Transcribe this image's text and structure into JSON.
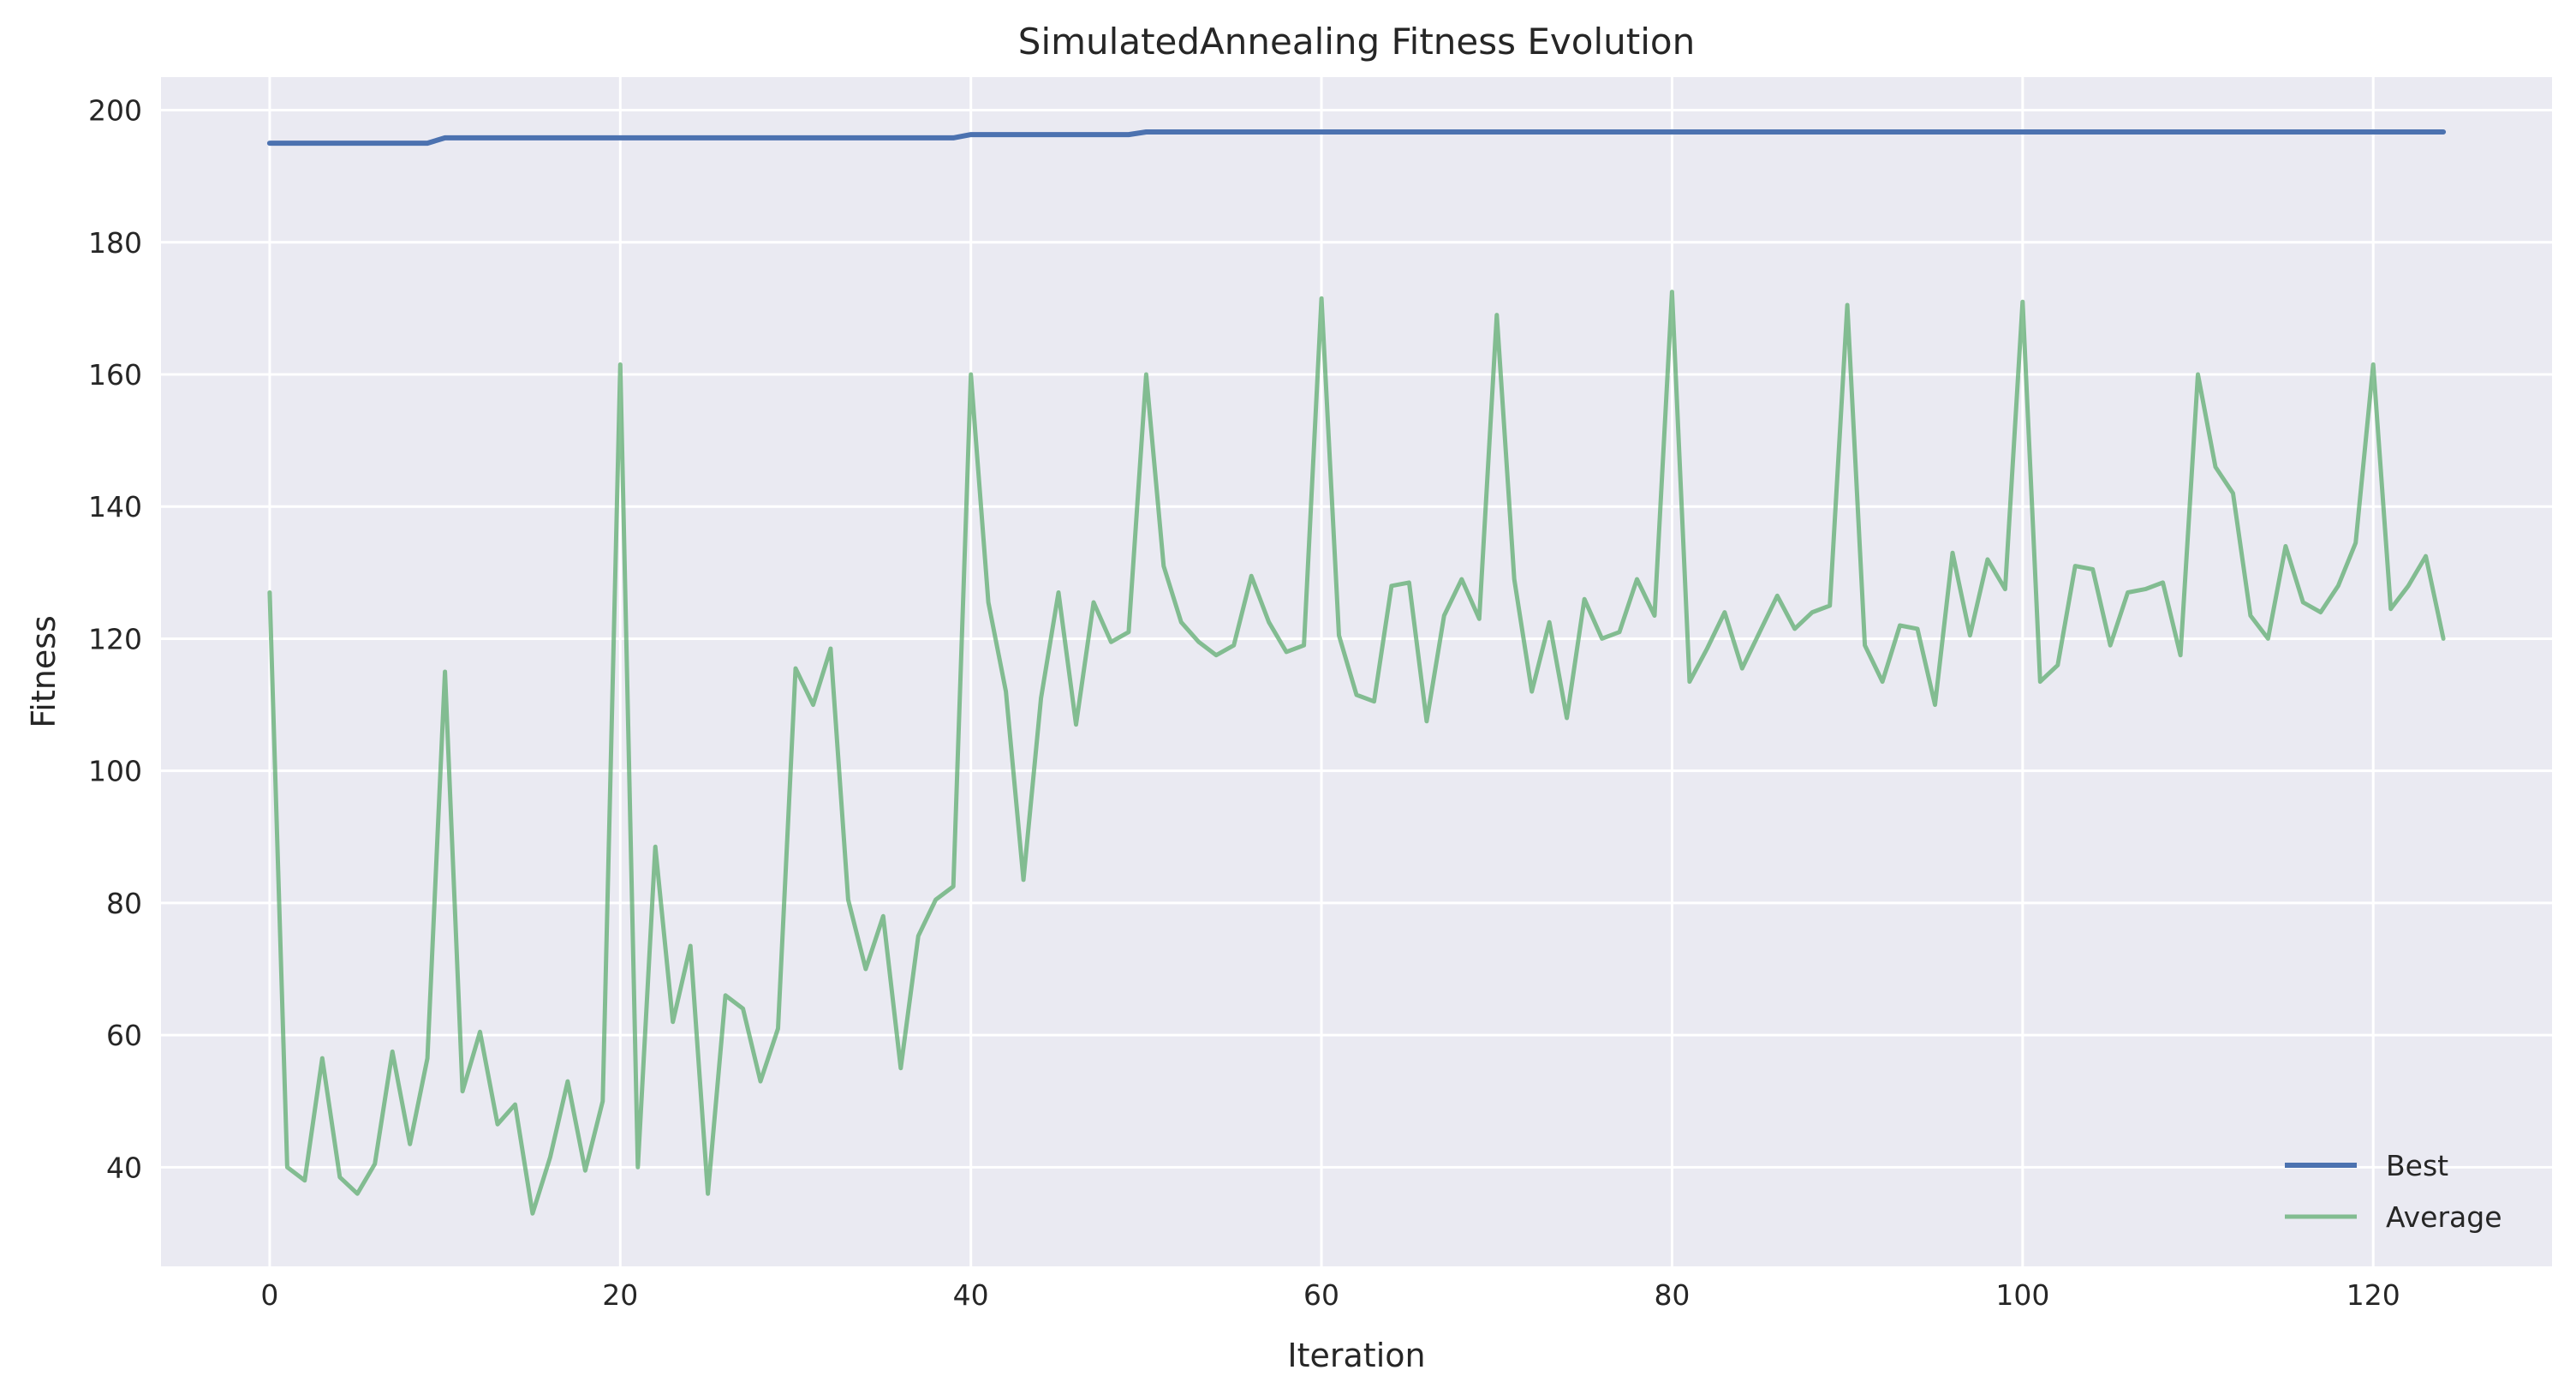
{
  "chart_data": {
    "type": "line",
    "title": "SimulatedAnnealing Fitness Evolution",
    "xlabel": "Iteration",
    "ylabel": "Fitness",
    "xlim": [
      -6.2,
      130.2
    ],
    "ylim": [
      25,
      205
    ],
    "xticks": [
      0,
      20,
      40,
      60,
      80,
      100,
      120
    ],
    "yticks": [
      40,
      60,
      80,
      100,
      120,
      140,
      160,
      180,
      200
    ],
    "grid": true,
    "legend_position": "bottom-right",
    "background_color": "#eaeaf2",
    "series": [
      {
        "name": "Best",
        "color": "#4c72b0",
        "x": [
          0,
          9,
          10,
          39,
          40,
          49,
          50,
          124
        ],
        "y": [
          195.0,
          195.0,
          195.8,
          195.8,
          196.3,
          196.3,
          196.7,
          196.7
        ]
      },
      {
        "name": "Average",
        "color": "#55a868",
        "x": [
          0,
          1,
          2,
          3,
          4,
          5,
          6,
          7,
          8,
          9,
          10,
          11,
          12,
          13,
          14,
          15,
          16,
          17,
          18,
          19,
          20,
          21,
          22,
          23,
          24,
          25,
          26,
          27,
          28,
          29,
          30,
          31,
          32,
          33,
          34,
          35,
          36,
          37,
          38,
          39,
          40,
          41,
          42,
          43,
          44,
          45,
          46,
          47,
          48,
          49,
          50,
          51,
          52,
          53,
          54,
          55,
          56,
          57,
          58,
          59,
          60,
          61,
          62,
          63,
          64,
          65,
          66,
          67,
          68,
          69,
          70,
          71,
          72,
          73,
          74,
          75,
          76,
          77,
          78,
          79,
          80,
          81,
          82,
          83,
          84,
          85,
          86,
          87,
          88,
          89,
          90,
          91,
          92,
          93,
          94,
          95,
          96,
          97,
          98,
          99,
          100,
          101,
          102,
          103,
          104,
          105,
          106,
          107,
          108,
          109,
          110,
          111,
          112,
          113,
          114,
          115,
          116,
          117,
          118,
          119,
          120,
          121,
          122,
          123,
          124
        ],
        "y": [
          127,
          40,
          38,
          56.5,
          38.5,
          36,
          40.5,
          57.5,
          43.5,
          56.5,
          115,
          51.5,
          60.5,
          46.5,
          49.5,
          33,
          41.5,
          53,
          39.5,
          50,
          161.5,
          40,
          88.5,
          62,
          73.5,
          36,
          66,
          64,
          53,
          61,
          115.5,
          110,
          118.5,
          80.5,
          70,
          78,
          55,
          75,
          80.5,
          82.5,
          160,
          125.5,
          112,
          83.5,
          111,
          127,
          107,
          125.5,
          119.5,
          121,
          160,
          131,
          122.5,
          119.5,
          117.5,
          119,
          129.5,
          122.5,
          118,
          119,
          171.5,
          120.5,
          111.5,
          110.5,
          128,
          128.5,
          107.5,
          123.5,
          129,
          123,
          169,
          129,
          112,
          122.5,
          108,
          126,
          120,
          121,
          129,
          123.5,
          172.5,
          113.5,
          118.5,
          124,
          115.5,
          121,
          126.5,
          121.5,
          124,
          125,
          170.5,
          119,
          113.5,
          122,
          121.5,
          110,
          133,
          120.5,
          132,
          127.5,
          171,
          113.5,
          116,
          131,
          130.5,
          119,
          127,
          127.5,
          128.5,
          117.5,
          160,
          146,
          142,
          123.5,
          120,
          134,
          125.5,
          124,
          128,
          134.5,
          161.5,
          124.5,
          128,
          132.5,
          120
        ]
      }
    ]
  }
}
